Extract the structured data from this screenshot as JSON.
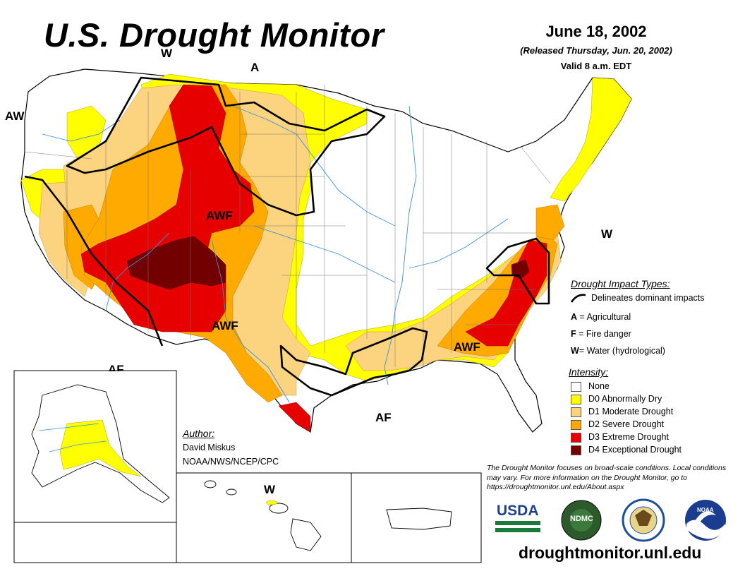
{
  "header": {
    "title": "U.S. Drought Monitor",
    "date": "June 18, 2002",
    "released": "(Released Thursday, Jun. 20, 2002)",
    "valid": "Valid 8 a.m. EDT"
  },
  "map_labels": {
    "aw_west": "AW",
    "w_north": "W",
    "a_north": "A",
    "awf_rockies": "AWF",
    "awf_southwest": "AWF",
    "awf_southeast": "AWF",
    "af_gulf": "AF",
    "af_west": "AF",
    "w_east": "W",
    "w_hawaii": "W"
  },
  "impact_legend": {
    "title": "Drought Impact Types:",
    "delineates": "Delineates dominant impacts",
    "items": [
      {
        "key": "A",
        "text": "= Agricultural"
      },
      {
        "key": "F",
        "text": "= Fire danger"
      },
      {
        "key": "W",
        "text": "= Water (hydrological)"
      }
    ]
  },
  "intensity_legend": {
    "title": "Intensity:",
    "items": [
      {
        "label": "None",
        "color": "#ffffff"
      },
      {
        "label": "D0 Abnormally Dry",
        "color": "#ffff00"
      },
      {
        "label": "D1 Moderate Drought",
        "color": "#fcd37f"
      },
      {
        "label": "D2 Severe Drought",
        "color": "#ffaa00"
      },
      {
        "label": "D3 Extreme Drought",
        "color": "#e60000"
      },
      {
        "label": "D4 Exceptional Drought",
        "color": "#730000"
      }
    ]
  },
  "author": {
    "heading": "Author:",
    "name": "David Miskus",
    "org": "NOAA/NWS/NCEP/CPC"
  },
  "note": "The Drought Monitor focuses on broad-scale conditions. Local conditions may vary. For more information on the Drought Monitor, go to https://droughtmonitor.unl.edu/About.aspx",
  "logos": {
    "usda": "USDA",
    "ndmc": "NDMC",
    "noaa": "NOAA"
  },
  "url": "droughtmonitor.unl.edu",
  "colors": {
    "none": "#ffffff",
    "d0": "#ffff00",
    "d1": "#fcd37f",
    "d2": "#ffaa00",
    "d3": "#e60000",
    "d4": "#730000",
    "river": "#3b8fd9",
    "boundary": "#000000"
  }
}
